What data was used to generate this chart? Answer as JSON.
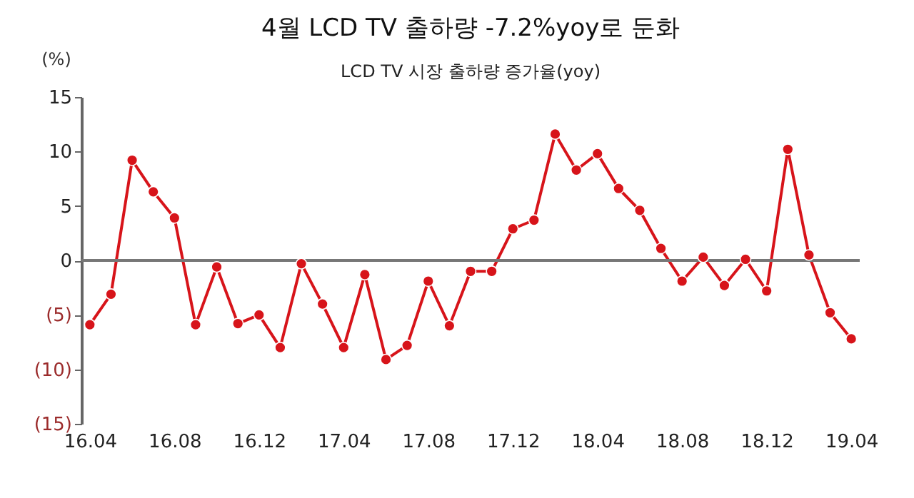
{
  "chart_data": {
    "type": "line",
    "title": "4월 LCD TV 출하량 -7.2%yoy로 둔화",
    "subtitle": "LCD TV 시장 출하량 증가율(yoy)",
    "ylabel": "(%)",
    "categories": [
      "16.04",
      null,
      null,
      null,
      "16.08",
      null,
      null,
      null,
      "16.12",
      null,
      null,
      null,
      "17.04",
      null,
      null,
      null,
      "17.08",
      null,
      null,
      null,
      "17.12",
      null,
      null,
      null,
      "18.04",
      null,
      null,
      null,
      "18.08",
      null,
      null,
      null,
      "18.12",
      null,
      null,
      null,
      "19.04"
    ],
    "series": [
      {
        "color": "#d7141a",
        "values": [
          -5.9,
          -3.1,
          9.2,
          6.3,
          3.9,
          -5.9,
          -0.6,
          -5.8,
          -5.0,
          -8.0,
          -0.3,
          -4.0,
          -8.0,
          -1.3,
          -9.1,
          -7.8,
          -1.9,
          -6.0,
          -1.0,
          -1.0,
          2.9,
          3.7,
          11.6,
          8.3,
          9.8,
          6.6,
          4.6,
          1.1,
          -1.9,
          0.3,
          -2.3,
          0.1,
          -2.8,
          10.2,
          0.5,
          -4.8,
          -7.2
        ]
      }
    ],
    "ylim": [
      -15,
      15
    ],
    "yticks": [
      {
        "value": -15,
        "label": "(15)"
      },
      {
        "value": -10,
        "label": "(10)"
      },
      {
        "value": -5,
        "label": "(5)"
      },
      0,
      5,
      10,
      15
    ],
    "ref_lines": [
      {
        "axis": "y",
        "value": 0
      }
    ],
    "marker": "circle",
    "line_style": "solid",
    "grid": false
  }
}
